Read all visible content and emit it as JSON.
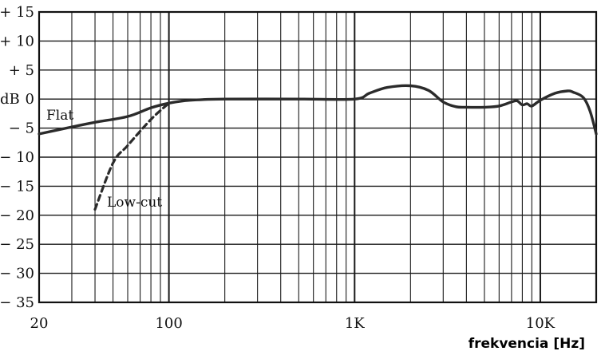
{
  "chart_data": {
    "type": "line",
    "title": "",
    "xlabel": "frekvencia [Hz]",
    "ylabel": "dB",
    "x_scale": "log",
    "xlim": [
      20,
      20000
    ],
    "ylim": [
      -35,
      15
    ],
    "grid": true,
    "y_ticks": [
      15,
      10,
      5,
      0,
      -5,
      -10,
      -15,
      -20,
      -25,
      -30,
      -35
    ],
    "y_tick_labels": [
      "+ 15",
      "+ 10",
      "+ 5",
      "0",
      "− 5",
      "− 10",
      "− 15",
      "− 20",
      "− 25",
      "− 30",
      "− 35"
    ],
    "x_ticks": [
      20,
      100,
      1000,
      10000
    ],
    "x_tick_labels": [
      "20",
      "100",
      "1K",
      "10K"
    ],
    "series": [
      {
        "name": "Flat",
        "style": "solid",
        "x": [
          20,
          30,
          40,
          60,
          80,
          100,
          130,
          200,
          500,
          1000,
          1200,
          1500,
          2000,
          2500,
          3000,
          3500,
          4000,
          5000,
          6000,
          7000,
          7500,
          8000,
          8500,
          9000,
          10000,
          12000,
          14000,
          15000,
          17000,
          18500,
          20000
        ],
        "y": [
          -6.0,
          -4.8,
          -4.0,
          -3.0,
          -1.5,
          -0.7,
          -0.2,
          0,
          0,
          0,
          1.0,
          2.0,
          2.3,
          1.5,
          -0.5,
          -1.3,
          -1.4,
          -1.4,
          -1.2,
          -0.5,
          -0.3,
          -1.0,
          -0.8,
          -1.2,
          -0.2,
          1.0,
          1.4,
          1.2,
          0.3,
          -2.0,
          -6.0
        ]
      },
      {
        "name": "Low-cut",
        "style": "dashed",
        "x": [
          40,
          50,
          60,
          80,
          100
        ],
        "y": [
          -19,
          -11,
          -8,
          -3.5,
          -0.7
        ]
      }
    ],
    "annotations": [
      "Flat",
      "Low-cut"
    ]
  }
}
